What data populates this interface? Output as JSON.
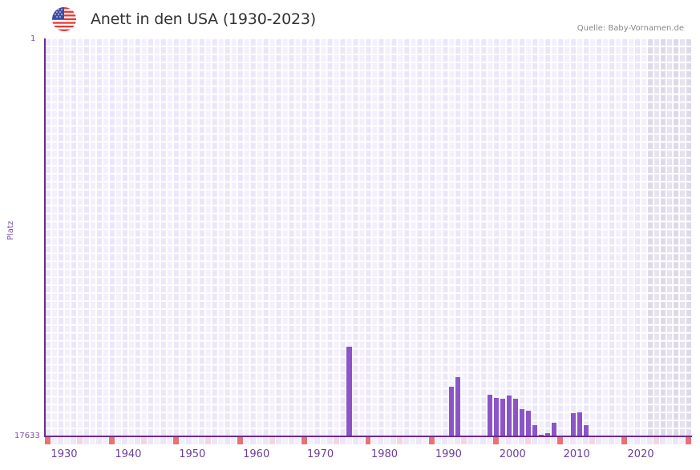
{
  "header": {
    "title": "Anett in den USA (1930-2023)",
    "source": "Quelle: Baby-Vornamen.de",
    "flag_icon": "us-flag-icon"
  },
  "colors": {
    "bar": "#8b55c8",
    "axis": "#6a2c91",
    "grid_bg_light": "#f3effc",
    "grid_bg_dark": "#ebe6f8",
    "future_shade": "#e2ddee",
    "marker_decade": "#e57373",
    "marker_half": "#f5d5df"
  },
  "chart_data": {
    "type": "bar",
    "title": "Anett in den USA (1930-2023)",
    "xlabel": "",
    "ylabel": "Platz",
    "y_axis_inverted": true,
    "ylim": [
      1,
      17633
    ],
    "y_tick_labels": [
      "1",
      "17633"
    ],
    "x_range": [
      1928,
      2028
    ],
    "x_tick_labels": [
      "1930",
      "1940",
      "1950",
      "1960",
      "1970",
      "1980",
      "1990",
      "2000",
      "2010",
      "2020"
    ],
    "grid": true,
    "shaded_future_from": 2022,
    "categories": [
      1975,
      1991,
      1992,
      1997,
      1998,
      1999,
      2000,
      2001,
      2002,
      2003,
      2004,
      2005,
      2006,
      2007,
      2010,
      2011,
      2012
    ],
    "values": [
      13660,
      15433,
      15007,
      15788,
      15929,
      15965,
      15823,
      15965,
      16426,
      16497,
      17136,
      17562,
      17491,
      17030,
      16604,
      16568,
      17136
    ]
  }
}
